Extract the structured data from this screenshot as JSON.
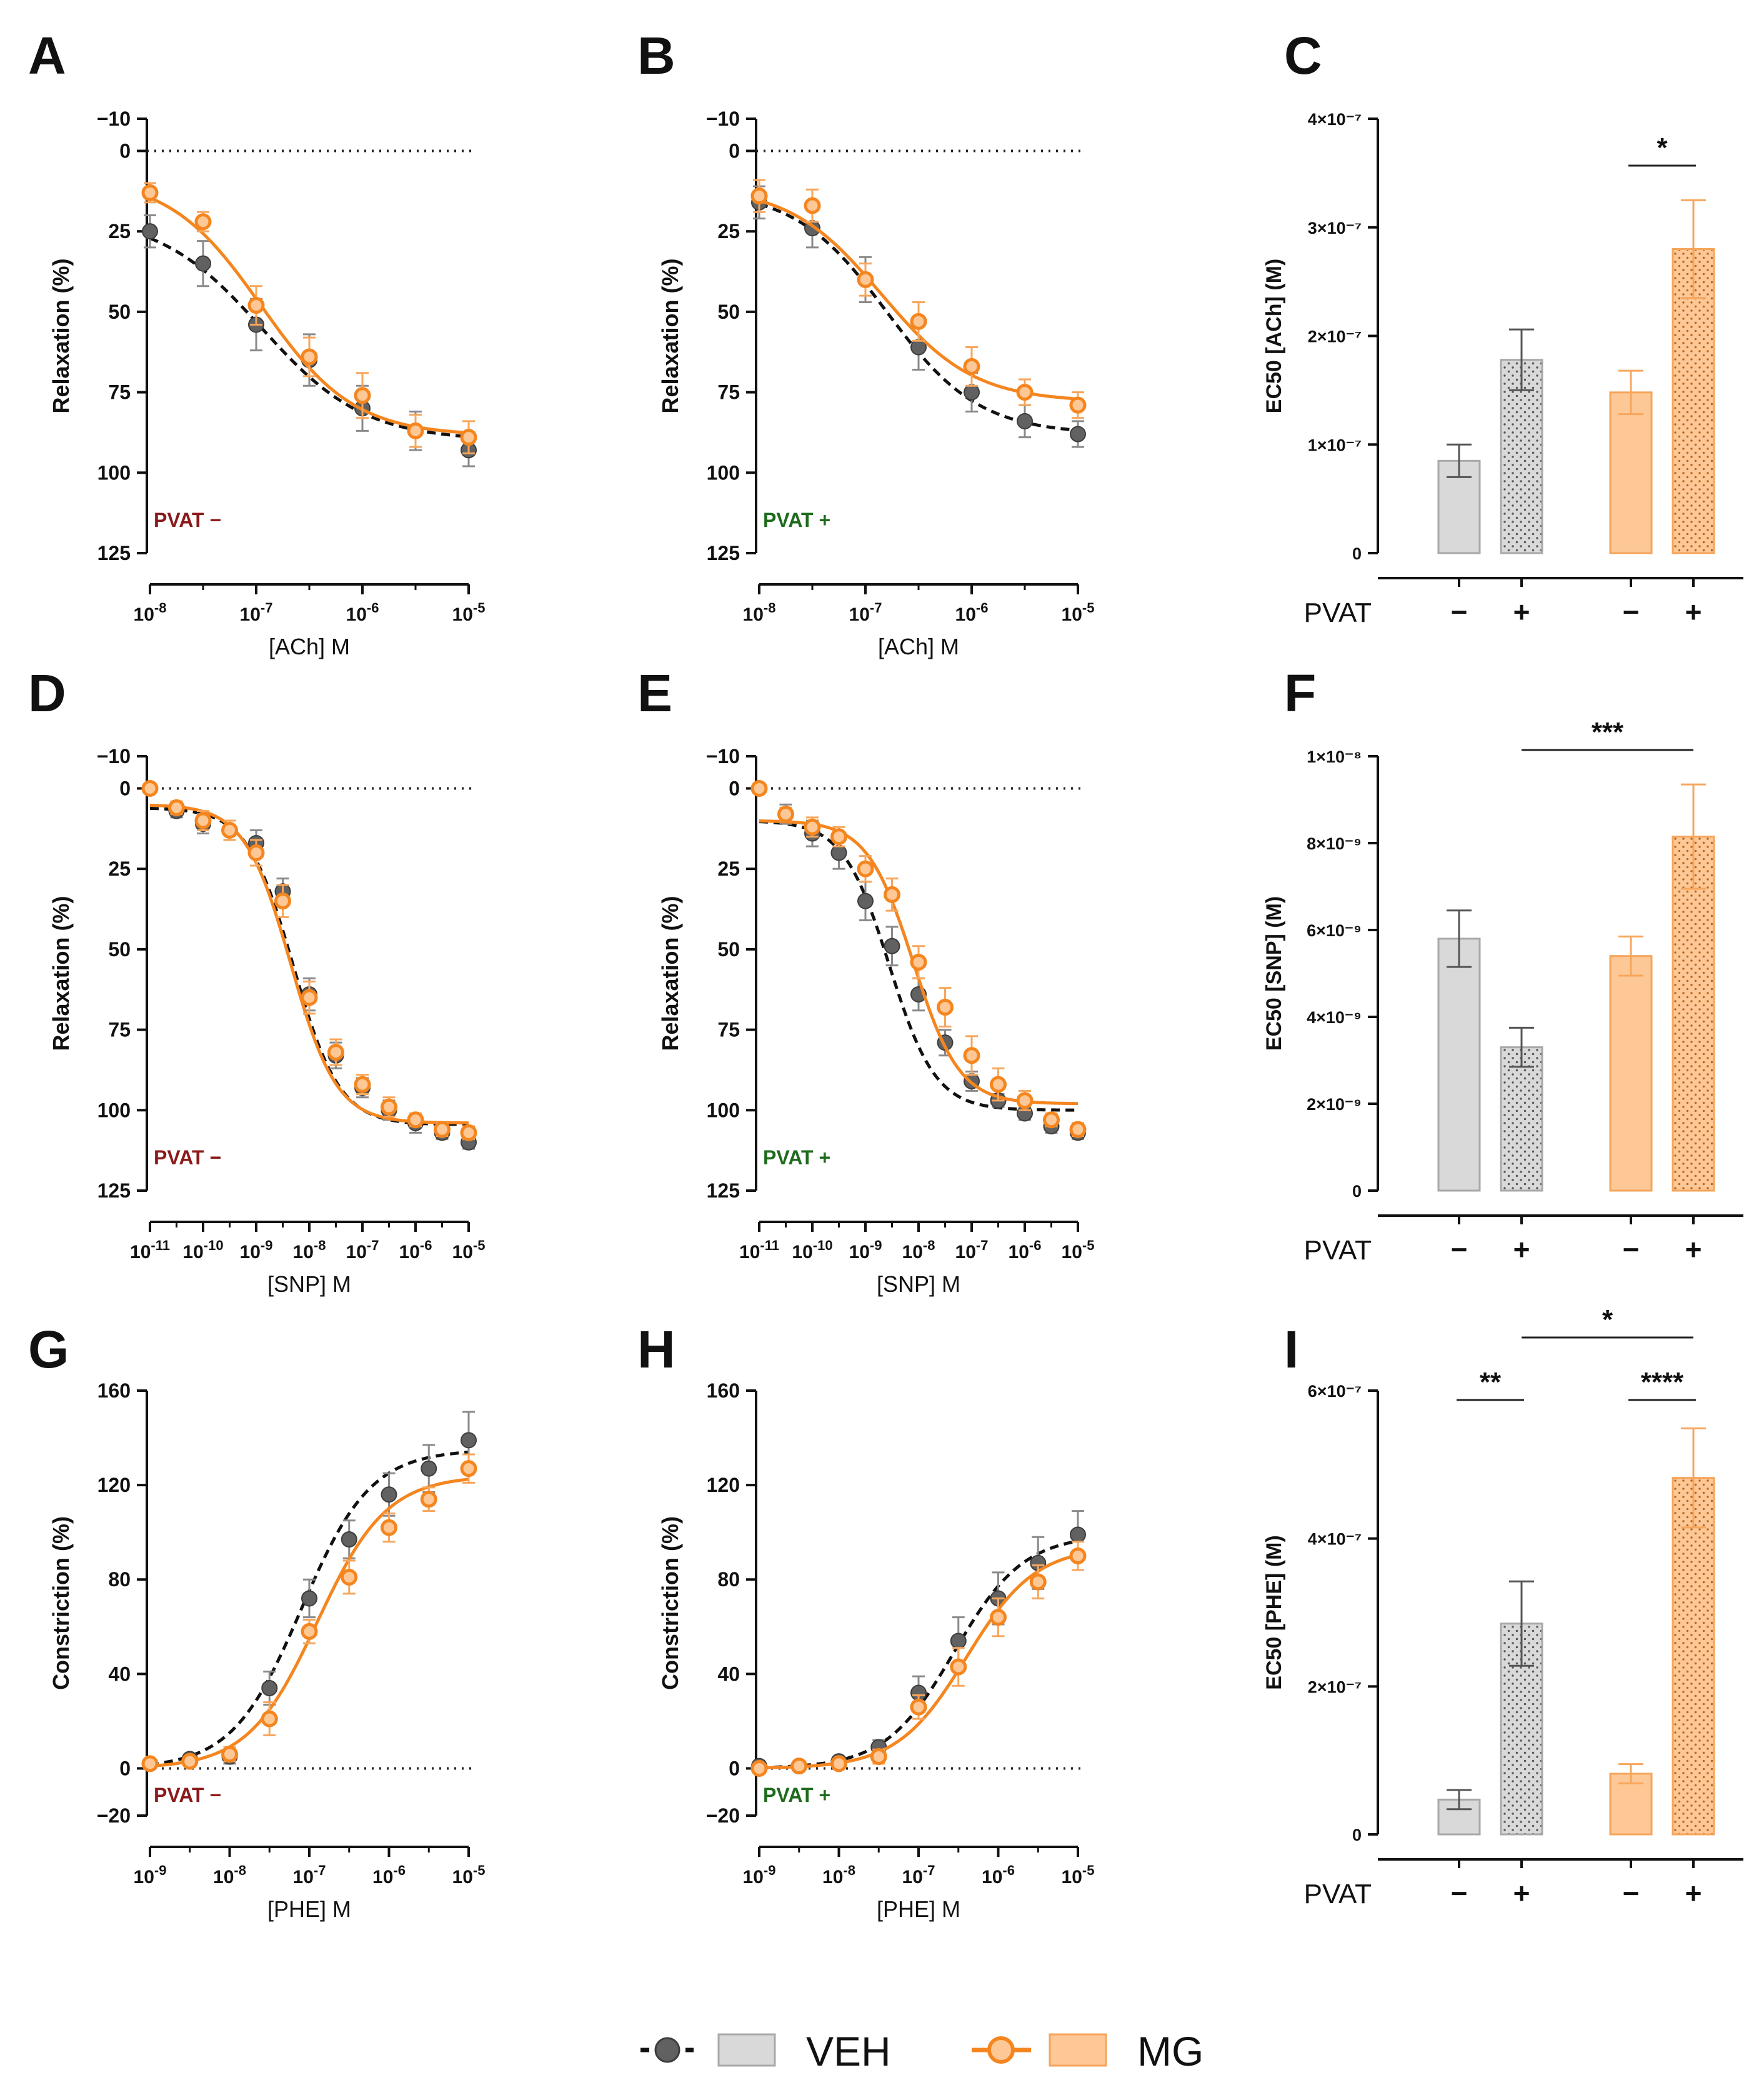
{
  "figure": {
    "legend": {
      "veh_label": "VEH",
      "mg_label": "MG"
    },
    "colors": {
      "veh": "#616161",
      "veh_bar": "#d9d9d9",
      "mg": "#f5861f",
      "mg_bar": "#fdc896",
      "pvat_minus": "#8b1a1a",
      "pvat_plus": "#1e6b1e"
    }
  },
  "chart_data": [
    {
      "panel": "A",
      "type": "line",
      "xlabel": "[ACh] M",
      "ylabel": "Relaxation (%)",
      "xlim": [
        -8,
        -5
      ],
      "ylim": [
        125,
        -10
      ],
      "y_inverted": true,
      "xticks": [
        -8,
        -7,
        -6,
        -5
      ],
      "yticks": [
        -10,
        0,
        25,
        50,
        75,
        100,
        125
      ],
      "annotation": "PVAT −",
      "series": [
        {
          "name": "VEH",
          "x": [
            -8,
            -7.5,
            -7,
            -6.5,
            -6,
            -5.5,
            -5
          ],
          "y": [
            25,
            35,
            54,
            65,
            80,
            87,
            93
          ],
          "err": [
            5,
            7,
            8,
            8,
            7,
            6,
            5
          ],
          "fit": {
            "bottom": 20,
            "top": 90,
            "logec50": -6.95,
            "hill": 0.9
          }
        },
        {
          "name": "MG",
          "x": [
            -8,
            -7.5,
            -7,
            -6.5,
            -6,
            -5.5,
            -5
          ],
          "y": [
            13,
            22,
            48,
            64,
            76,
            87,
            89
          ],
          "err": [
            3,
            3,
            6,
            6,
            7,
            5,
            5
          ],
          "fit": {
            "bottom": 8,
            "top": 88.5,
            "logec50": -6.95,
            "hill": 1.0
          }
        }
      ]
    },
    {
      "panel": "B",
      "type": "line",
      "xlabel": "[ACh] M",
      "ylabel": "Relaxation (%)",
      "xlim": [
        -8,
        -5
      ],
      "ylim": [
        125,
        -10
      ],
      "y_inverted": true,
      "xticks": [
        -8,
        -7,
        -6,
        -5
      ],
      "yticks": [
        -10,
        0,
        25,
        50,
        75,
        100,
        125
      ],
      "annotation": "PVAT +",
      "series": [
        {
          "name": "VEH",
          "x": [
            -8,
            -7.5,
            -7,
            -6.5,
            -6,
            -5.5,
            -5
          ],
          "y": [
            16,
            24,
            40,
            61,
            75,
            84,
            88
          ],
          "err": [
            5,
            6,
            7,
            7,
            6,
            5,
            4
          ],
          "fit": {
            "bottom": 12,
            "top": 88,
            "logec50": -6.8,
            "hill": 1.0
          }
        },
        {
          "name": "MG",
          "x": [
            -8,
            -7.5,
            -7,
            -6.5,
            -6,
            -5.5,
            -5
          ],
          "y": [
            14,
            17,
            40,
            53,
            67,
            75,
            79
          ],
          "err": [
            5,
            5,
            5,
            6,
            6,
            4,
            4
          ],
          "fit": {
            "bottom": 11,
            "top": 78,
            "logec50": -6.85,
            "hill": 1.0
          }
        }
      ]
    },
    {
      "panel": "C",
      "type": "bar",
      "ylabel": "EC50 [ACh] (M)",
      "ylim": [
        0,
        4e-07
      ],
      "ytick_labels": [
        "0",
        "1×10⁻⁷",
        "2×10⁻⁷",
        "3×10⁻⁷",
        "4×10⁻⁷"
      ],
      "row_label": "PVAT",
      "categories": [
        "−",
        "+",
        "−",
        "+"
      ],
      "groups": [
        "VEH",
        "VEH",
        "MG",
        "MG"
      ],
      "values": [
        8.5e-08,
        1.78e-07,
        1.48e-07,
        2.8e-07
      ],
      "err": [
        1.5e-08,
        2.8e-08,
        2e-08,
        4.5e-08
      ],
      "significance": [
        {
          "from": 2,
          "to": 3,
          "label": "*"
        }
      ]
    },
    {
      "panel": "D",
      "type": "line",
      "xlabel": "[SNP] M",
      "ylabel": "Relaxation (%)",
      "xlim": [
        -11,
        -5
      ],
      "ylim": [
        125,
        -10
      ],
      "y_inverted": true,
      "xticks": [
        -11,
        -10,
        -9,
        -8,
        -7,
        -6,
        -5
      ],
      "yticks": [
        -10,
        0,
        25,
        50,
        75,
        100,
        125
      ],
      "annotation": "PVAT −",
      "series": [
        {
          "name": "VEH",
          "x": [
            -11,
            -10.5,
            -10,
            -9.5,
            -9,
            -8.5,
            -8,
            -7.5,
            -7,
            -6.5,
            -6,
            -5.5,
            -5
          ],
          "y": [
            0,
            7,
            11,
            13,
            17,
            32,
            64,
            83,
            93,
            100,
            104,
            107,
            110
          ],
          "err": [
            1,
            2,
            3,
            3,
            4,
            4,
            5,
            4,
            3,
            3,
            3,
            2,
            2
          ],
          "fit": {
            "bottom": 6,
            "top": 104.5,
            "logec50": -8.3,
            "hill": 1.0
          }
        },
        {
          "name": "MG",
          "x": [
            -11,
            -10.5,
            -10,
            -9.5,
            -9,
            -8.5,
            -8,
            -7.5,
            -7,
            -6.5,
            -6,
            -5.5,
            -5
          ],
          "y": [
            0,
            6,
            10,
            13,
            20,
            35,
            65,
            82,
            92,
            99,
            103,
            106,
            107
          ],
          "err": [
            1,
            2,
            3,
            3,
            4,
            5,
            5,
            4,
            3,
            3,
            2,
            2,
            2
          ],
          "fit": {
            "bottom": 5,
            "top": 104,
            "logec50": -8.35,
            "hill": 1.0
          }
        }
      ]
    },
    {
      "panel": "E",
      "type": "line",
      "xlabel": "[SNP] M",
      "ylabel": "Relaxation (%)",
      "xlim": [
        -11,
        -5
      ],
      "ylim": [
        125,
        -10
      ],
      "y_inverted": true,
      "xticks": [
        -11,
        -10,
        -9,
        -8,
        -7,
        -6,
        -5
      ],
      "yticks": [
        -10,
        0,
        25,
        50,
        75,
        100,
        125
      ],
      "annotation": "PVAT +",
      "series": [
        {
          "name": "VEH",
          "x": [
            -11,
            -10.5,
            -10,
            -9.5,
            -9,
            -8.5,
            -8,
            -7.5,
            -7,
            -6.5,
            -6,
            -5.5,
            -5
          ],
          "y": [
            0,
            8,
            14,
            20,
            35,
            49,
            64,
            79,
            91,
            97,
            101,
            105,
            107
          ],
          "err": [
            1,
            3,
            4,
            5,
            6,
            6,
            5,
            4,
            3,
            2,
            2,
            2,
            2
          ],
          "fit": {
            "bottom": 10,
            "top": 100,
            "logec50": -8.55,
            "hill": 1.0
          }
        },
        {
          "name": "MG",
          "x": [
            -11,
            -10.5,
            -10,
            -9.5,
            -9,
            -8.5,
            -8,
            -7.5,
            -7,
            -6.5,
            -6,
            -5.5,
            -5
          ],
          "y": [
            0,
            8,
            12,
            15,
            25,
            33,
            54,
            68,
            83,
            92,
            97,
            103,
            106
          ],
          "err": [
            1,
            2,
            3,
            3,
            4,
            5,
            5,
            6,
            6,
            5,
            3,
            2,
            2
          ],
          "fit": {
            "bottom": 10,
            "top": 98,
            "logec50": -8.1,
            "hill": 1.0
          }
        }
      ]
    },
    {
      "panel": "F",
      "type": "bar",
      "ylabel": "EC50 [SNP] (M)",
      "ylim": [
        0,
        1e-08
      ],
      "ytick_labels": [
        "0",
        "2×10⁻⁹",
        "4×10⁻⁹",
        "6×10⁻⁹",
        "8×10⁻⁹",
        "1×10⁻⁸"
      ],
      "row_label": "PVAT",
      "categories": [
        "−",
        "+",
        "−",
        "+"
      ],
      "groups": [
        "VEH",
        "VEH",
        "MG",
        "MG"
      ],
      "values": [
        5.8e-09,
        3.3e-09,
        5.4e-09,
        8.15e-09
      ],
      "err": [
        6.5e-10,
        4.5e-10,
        4.5e-10,
        1.2e-09
      ],
      "significance": [
        {
          "from": 1,
          "to": 3,
          "label": "***"
        }
      ]
    },
    {
      "panel": "G",
      "type": "line",
      "xlabel": "[PHE] M",
      "ylabel": "Constriction (%)",
      "xlim": [
        -9,
        -5
      ],
      "ylim": [
        -20,
        160
      ],
      "y_inverted": false,
      "xticks": [
        -9,
        -8,
        -7,
        -6,
        -5
      ],
      "yticks": [
        -20,
        0,
        40,
        80,
        120,
        160
      ],
      "annotation": "PVAT −",
      "series": [
        {
          "name": "VEH",
          "x": [
            -9,
            -8.5,
            -8,
            -7.5,
            -7,
            -6.5,
            -6,
            -5.5,
            -5
          ],
          "y": [
            2,
            4,
            5,
            34,
            72,
            97,
            116,
            127,
            139
          ],
          "err": [
            2,
            2,
            3,
            7,
            8,
            8,
            9,
            10,
            12
          ],
          "fit": {
            "bottom": 0,
            "top": 135,
            "logec50": -7.1,
            "hill": 1.0
          }
        },
        {
          "name": "MG",
          "x": [
            -9,
            -8.5,
            -8,
            -7.5,
            -7,
            -6.5,
            -6,
            -5.5,
            -5
          ],
          "y": [
            2,
            3,
            6,
            21,
            58,
            81,
            102,
            114,
            127
          ],
          "err": [
            2,
            2,
            3,
            7,
            5,
            7,
            6,
            5,
            6
          ],
          "fit": {
            "bottom": 0,
            "top": 124,
            "logec50": -6.9,
            "hill": 1.0
          }
        }
      ]
    },
    {
      "panel": "H",
      "type": "line",
      "xlabel": "[PHE] M",
      "ylabel": "Constriction (%)",
      "xlim": [
        -9,
        -5
      ],
      "ylim": [
        -20,
        160
      ],
      "y_inverted": false,
      "xticks": [
        -9,
        -8,
        -7,
        -6,
        -5
      ],
      "yticks": [
        -20,
        0,
        40,
        80,
        120,
        160
      ],
      "annotation": "PVAT +",
      "series": [
        {
          "name": "VEH",
          "x": [
            -9,
            -8.5,
            -8,
            -7.5,
            -7,
            -6.5,
            -6,
            -5.5,
            -5
          ],
          "y": [
            1,
            1,
            3,
            9,
            32,
            54,
            72,
            87,
            99
          ],
          "err": [
            2,
            2,
            2,
            3,
            7,
            10,
            11,
            11,
            10
          ],
          "fit": {
            "bottom": 0,
            "top": 99,
            "logec50": -6.55,
            "hill": 1.0
          }
        },
        {
          "name": "MG",
          "x": [
            -9,
            -8.5,
            -8,
            -7.5,
            -7,
            -6.5,
            -6,
            -5.5,
            -5
          ],
          "y": [
            0,
            1,
            2,
            5,
            26,
            43,
            64,
            79,
            90
          ],
          "err": [
            1,
            1,
            2,
            3,
            5,
            8,
            8,
            7,
            6
          ],
          "fit": {
            "bottom": 0,
            "top": 94,
            "logec50": -6.4,
            "hill": 1.0
          }
        }
      ]
    },
    {
      "panel": "I",
      "type": "bar",
      "ylabel": "EC50 [PHE] (M)",
      "ylim": [
        0,
        6e-07
      ],
      "ytick_labels": [
        "0",
        "2×10⁻⁷",
        "4×10⁻⁷",
        "6×10⁻⁷"
      ],
      "row_label": "PVAT",
      "categories": [
        "−",
        "+",
        "−",
        "+"
      ],
      "groups": [
        "VEH",
        "VEH",
        "MG",
        "MG"
      ],
      "values": [
        4.7e-08,
        2.85e-07,
        8.2e-08,
        4.82e-07
      ],
      "err": [
        1.3e-08,
        5.7e-08,
        1.3e-08,
        6.7e-08
      ],
      "significance": [
        {
          "from": 0,
          "to": 1,
          "label": "**"
        },
        {
          "from": 2,
          "to": 3,
          "label": "****"
        },
        {
          "from": 1,
          "to": 3,
          "label": "*",
          "level": 2
        }
      ]
    }
  ]
}
